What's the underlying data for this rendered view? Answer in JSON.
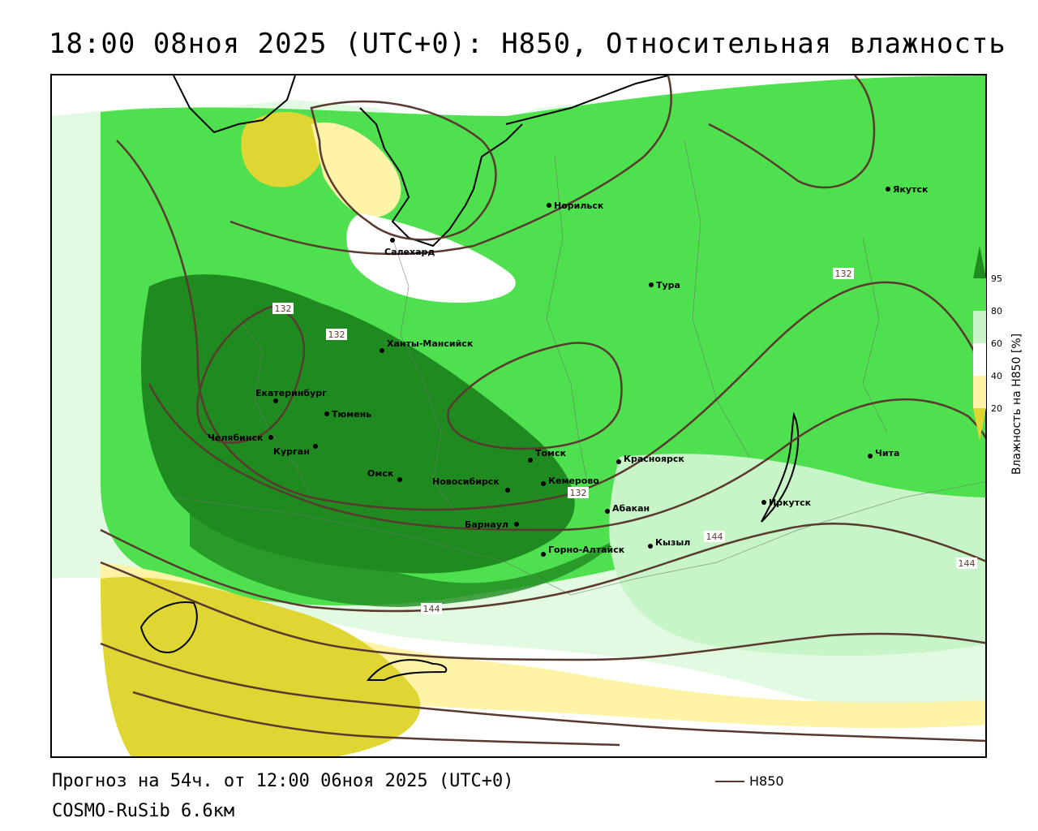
{
  "title": "18:00 08ноя 2025 (UTC+0): H850, Относительная влажность",
  "footer": {
    "forecast": "Прогноз на 54ч. от 12:00 06ноя 2025 (UTC+0)",
    "model": "COSMO-RuSib 6.6км",
    "contour_legend_label": "H850"
  },
  "legend": {
    "caption": "Влажность на H850 [%]",
    "ticks": [
      "95",
      "80",
      "60",
      "40",
      "20"
    ],
    "colors": {
      "ge95": "#1f8a1f",
      "80_95": "#4ee04e",
      "60_80": "#c8f5c8",
      "40_60": "#ffffff",
      "20_40": "#fff3a8",
      "lt20": "#e0d633"
    }
  },
  "contour_color": "#5a3a2e",
  "contour_labels": [
    "132",
    "132",
    "132",
    "132",
    "144",
    "144",
    "144"
  ],
  "cities": [
    {
      "name": "Якутск"
    },
    {
      "name": "Норильск"
    },
    {
      "name": "Салехард"
    },
    {
      "name": "Тура"
    },
    {
      "name": "Ханты-Мансийск"
    },
    {
      "name": "Екатеринбург"
    },
    {
      "name": "Тюмень"
    },
    {
      "name": "Челябинск"
    },
    {
      "name": "Курган"
    },
    {
      "name": "Омск"
    },
    {
      "name": "Новосибирск"
    },
    {
      "name": "Томск"
    },
    {
      "name": "Кемерово"
    },
    {
      "name": "Красноярск"
    },
    {
      "name": "Абакан"
    },
    {
      "name": "Барнаул"
    },
    {
      "name": "Горно-Алтайск"
    },
    {
      "name": "Кызыл"
    },
    {
      "name": "Иркутск"
    },
    {
      "name": "Чита"
    }
  ]
}
